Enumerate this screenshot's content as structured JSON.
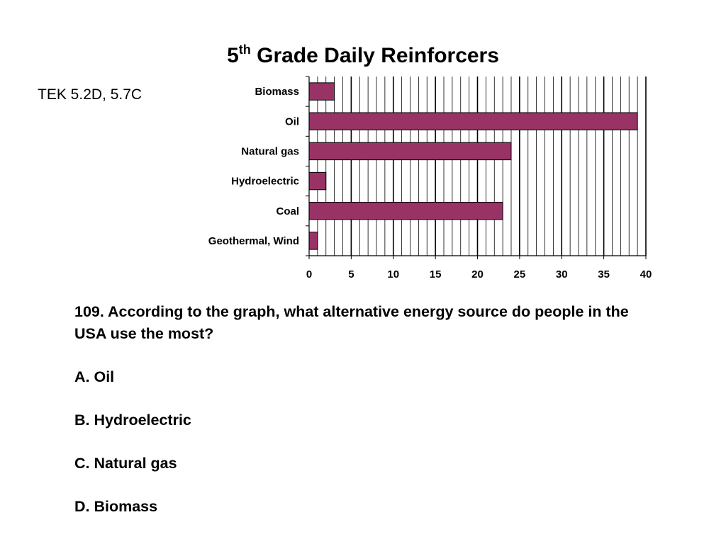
{
  "title": {
    "number": "5",
    "suffix": "th",
    "text": "Grade Daily Reinforcers"
  },
  "tek": "TEK 5.2D, 5.7C",
  "chart_data": {
    "type": "bar",
    "orientation": "horizontal",
    "categories": [
      "Biomass",
      "Oil",
      "Natural gas",
      "Hydroelectric",
      "Coal",
      "Geothermal, Wind"
    ],
    "values": [
      3,
      39,
      24,
      2,
      23,
      1
    ],
    "xlim": [
      0,
      40
    ],
    "xticks": [
      "0",
      "5",
      "10",
      "15",
      "20",
      "25",
      "30",
      "35",
      "40"
    ],
    "grid": true,
    "bar_color": "#993366",
    "legend": false
  },
  "question": {
    "text": "109. According to the graph, what alternative energy source do people in the USA use the most?",
    "answers": [
      "A. Oil",
      "B. Hydroelectric",
      "C. Natural gas",
      "D. Biomass"
    ]
  }
}
